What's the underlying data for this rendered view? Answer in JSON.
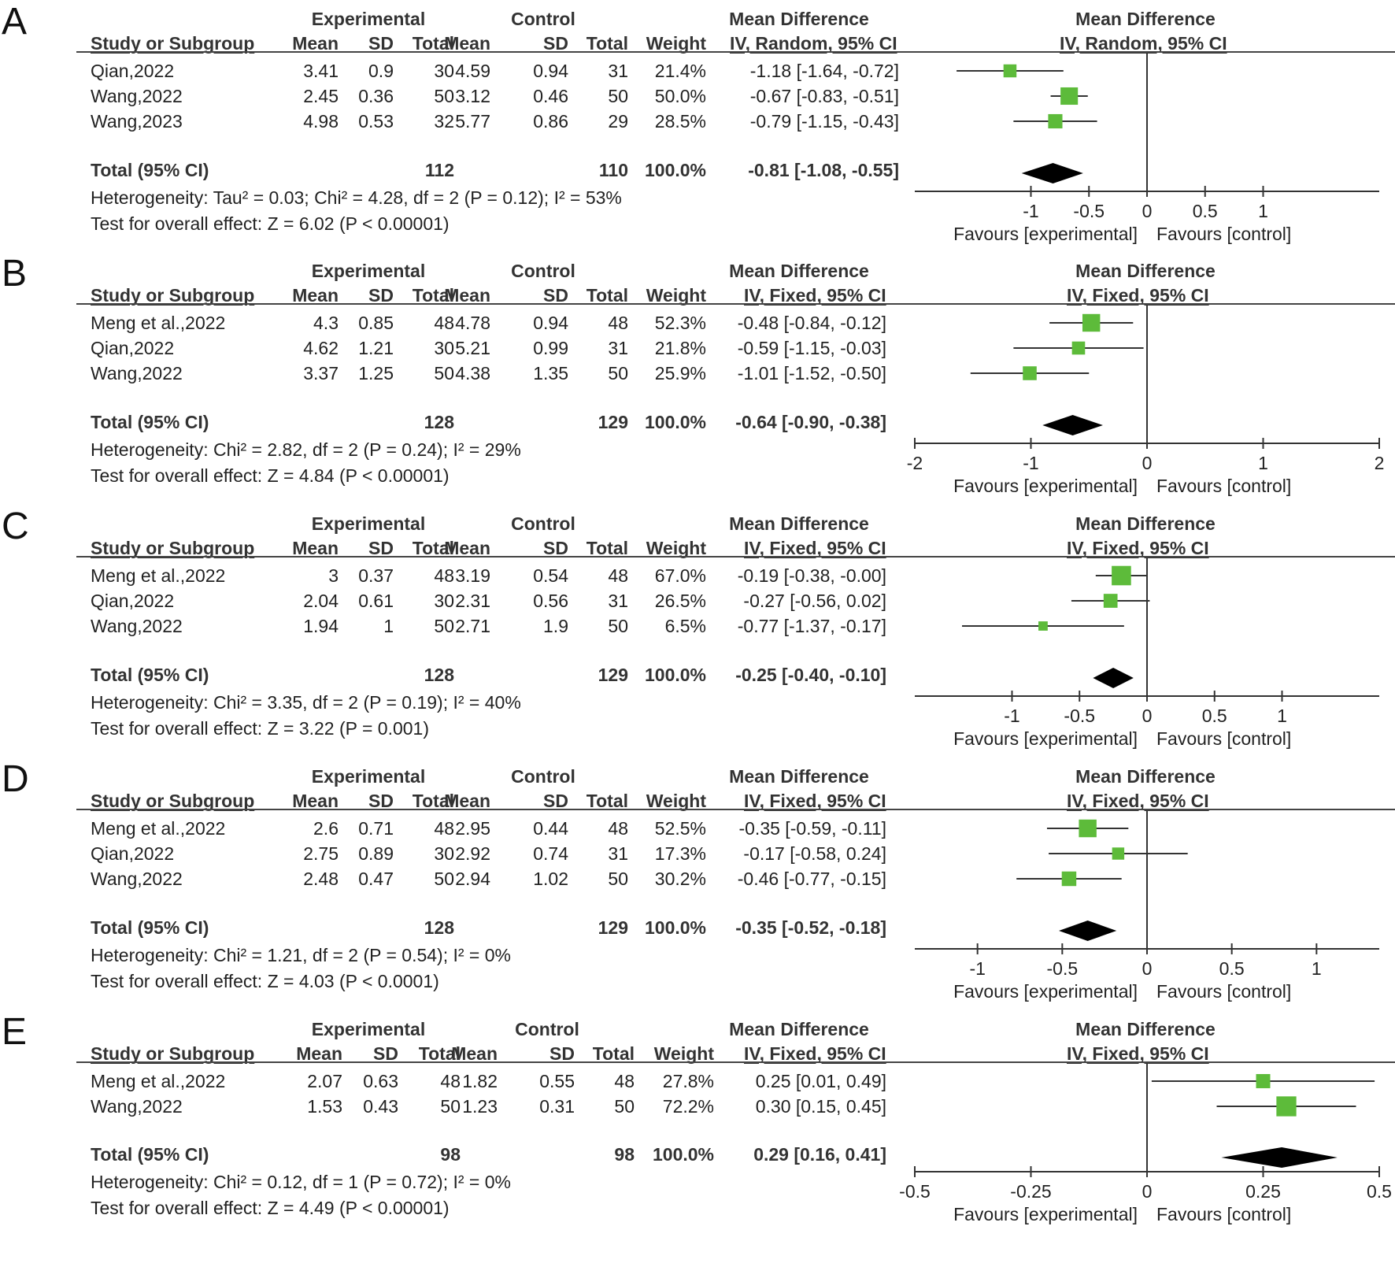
{
  "headers": {
    "experimental": "Experimental",
    "control": "Control",
    "mean_difference": "Mean Difference",
    "study_or_subgroup": "Study or Subgroup",
    "mean": "Mean",
    "sd": "SD",
    "total": "Total",
    "weight": "Weight"
  },
  "colors": {
    "study_marker": "#5dbb3a",
    "diamond": "#000000",
    "line": "#333333"
  },
  "chart_data": [
    {
      "type": "table",
      "panel_label": "A",
      "method": "IV, Random, 95% CI",
      "rows": [
        {
          "study": "Qian,2022",
          "exp_mean": "3.41",
          "exp_sd": "0.9",
          "exp_total": "30",
          "ctl_mean": "4.59",
          "ctl_sd": "0.94",
          "ctl_total": "31",
          "weight": "21.4%",
          "md_text": "-1.18 [-1.64, -0.72]",
          "md": -1.18,
          "lo": -1.64,
          "hi": -0.72,
          "w": 21.4
        },
        {
          "study": "Wang,2022",
          "exp_mean": "2.45",
          "exp_sd": "0.36",
          "exp_total": "50",
          "ctl_mean": "3.12",
          "ctl_sd": "0.46",
          "ctl_total": "50",
          "weight": "50.0%",
          "md_text": "-0.67 [-0.83, -0.51]",
          "md": -0.67,
          "lo": -0.83,
          "hi": -0.51,
          "w": 50.0
        },
        {
          "study": "Wang,2023",
          "exp_mean": "4.98",
          "exp_sd": "0.53",
          "exp_total": "32",
          "ctl_mean": "5.77",
          "ctl_sd": "0.86",
          "ctl_total": "29",
          "weight": "28.5%",
          "md_text": "-0.79 [-1.15, -0.43]",
          "md": -0.79,
          "lo": -1.15,
          "hi": -0.43,
          "w": 28.5
        }
      ],
      "total": {
        "label": "Total (95% CI)",
        "exp_total": "112",
        "ctl_total": "110",
        "weight": "100.0%",
        "md_text": "-0.81 [-1.08, -0.55]",
        "md": -0.81,
        "lo": -1.08,
        "hi": -0.55
      },
      "heterogeneity": "Heterogeneity: Tau² = 0.03; Chi² = 4.28, df = 2 (P = 0.12); I² = 53%",
      "overall_effect": "Test for overall effect: Z = 6.02 (P < 0.00001)",
      "xlim": [
        -2,
        2
      ],
      "ticks": [
        -1,
        -0.5,
        0,
        0.5,
        1
      ],
      "favours_left": "Favours [experimental]",
      "favours_right": "Favours [control]"
    },
    {
      "type": "table",
      "panel_label": "B",
      "method": "IV, Fixed, 95% CI",
      "rows": [
        {
          "study": "Meng et al.,2022",
          "exp_mean": "4.3",
          "exp_sd": "0.85",
          "exp_total": "48",
          "ctl_mean": "4.78",
          "ctl_sd": "0.94",
          "ctl_total": "48",
          "weight": "52.3%",
          "md_text": "-0.48 [-0.84, -0.12]",
          "md": -0.48,
          "lo": -0.84,
          "hi": -0.12,
          "w": 52.3
        },
        {
          "study": "Qian,2022",
          "exp_mean": "4.62",
          "exp_sd": "1.21",
          "exp_total": "30",
          "ctl_mean": "5.21",
          "ctl_sd": "0.99",
          "ctl_total": "31",
          "weight": "21.8%",
          "md_text": "-0.59 [-1.15, -0.03]",
          "md": -0.59,
          "lo": -1.15,
          "hi": -0.03,
          "w": 21.8
        },
        {
          "study": "Wang,2022",
          "exp_mean": "3.37",
          "exp_sd": "1.25",
          "exp_total": "50",
          "ctl_mean": "4.38",
          "ctl_sd": "1.35",
          "ctl_total": "50",
          "weight": "25.9%",
          "md_text": "-1.01 [-1.52, -0.50]",
          "md": -1.01,
          "lo": -1.52,
          "hi": -0.5,
          "w": 25.9
        }
      ],
      "total": {
        "label": "Total (95% CI)",
        "exp_total": "128",
        "ctl_total": "129",
        "weight": "100.0%",
        "md_text": "-0.64 [-0.90, -0.38]",
        "md": -0.64,
        "lo": -0.9,
        "hi": -0.38
      },
      "heterogeneity": "Heterogeneity: Chi² = 2.82, df = 2 (P = 0.24); I² = 29%",
      "overall_effect": "Test for overall effect: Z = 4.84 (P < 0.00001)",
      "xlim": [
        -2,
        2
      ],
      "ticks": [
        -2,
        -1,
        0,
        1,
        2
      ],
      "favours_left": "Favours [experimental]",
      "favours_right": "Favours [control]"
    },
    {
      "type": "table",
      "panel_label": "C",
      "method": "IV, Fixed, 95% CI",
      "rows": [
        {
          "study": "Meng et al.,2022",
          "exp_mean": "3",
          "exp_sd": "0.37",
          "exp_total": "48",
          "ctl_mean": "3.19",
          "ctl_sd": "0.54",
          "ctl_total": "48",
          "weight": "67.0%",
          "md_text": "-0.19 [-0.38, -0.00]",
          "md": -0.19,
          "lo": -0.38,
          "hi": -0.0,
          "w": 67.0
        },
        {
          "study": "Qian,2022",
          "exp_mean": "2.04",
          "exp_sd": "0.61",
          "exp_total": "30",
          "ctl_mean": "2.31",
          "ctl_sd": "0.56",
          "ctl_total": "31",
          "weight": "26.5%",
          "md_text": "-0.27 [-0.56, 0.02]",
          "md": -0.27,
          "lo": -0.56,
          "hi": 0.02,
          "w": 26.5
        },
        {
          "study": "Wang,2022",
          "exp_mean": "1.94",
          "exp_sd": "1",
          "exp_total": "50",
          "ctl_mean": "2.71",
          "ctl_sd": "1.9",
          "ctl_total": "50",
          "weight": "6.5%",
          "md_text": "-0.77 [-1.37, -0.17]",
          "md": -0.77,
          "lo": -1.37,
          "hi": -0.17,
          "w": 6.5
        }
      ],
      "total": {
        "label": "Total (95% CI)",
        "exp_total": "128",
        "ctl_total": "129",
        "weight": "100.0%",
        "md_text": "-0.25 [-0.40, -0.10]",
        "md": -0.25,
        "lo": -0.4,
        "hi": -0.1
      },
      "heterogeneity": "Heterogeneity: Chi² = 3.35, df = 2 (P = 0.19); I² = 40%",
      "overall_effect": "Test for overall effect: Z = 3.22 (P = 0.001)",
      "xlim": [
        -1.72,
        1.72
      ],
      "ticks": [
        -1,
        -0.5,
        0,
        0.5,
        1
      ],
      "favours_left": "Favours [experimental]",
      "favours_right": "Favours [control]"
    },
    {
      "type": "table",
      "panel_label": "D",
      "method": "IV, Fixed, 95% CI",
      "rows": [
        {
          "study": "Meng et al.,2022",
          "exp_mean": "2.6",
          "exp_sd": "0.71",
          "exp_total": "48",
          "ctl_mean": "2.95",
          "ctl_sd": "0.44",
          "ctl_total": "48",
          "weight": "52.5%",
          "md_text": "-0.35 [-0.59, -0.11]",
          "md": -0.35,
          "lo": -0.59,
          "hi": -0.11,
          "w": 52.5
        },
        {
          "study": "Qian,2022",
          "exp_mean": "2.75",
          "exp_sd": "0.89",
          "exp_total": "30",
          "ctl_mean": "2.92",
          "ctl_sd": "0.74",
          "ctl_total": "31",
          "weight": "17.3%",
          "md_text": "-0.17 [-0.58, 0.24]",
          "md": -0.17,
          "lo": -0.58,
          "hi": 0.24,
          "w": 17.3
        },
        {
          "study": "Wang,2022",
          "exp_mean": "2.48",
          "exp_sd": "0.47",
          "exp_total": "50",
          "ctl_mean": "2.94",
          "ctl_sd": "1.02",
          "ctl_total": "50",
          "weight": "30.2%",
          "md_text": "-0.46 [-0.77, -0.15]",
          "md": -0.46,
          "lo": -0.77,
          "hi": -0.15,
          "w": 30.2
        }
      ],
      "total": {
        "label": "Total (95% CI)",
        "exp_total": "128",
        "ctl_total": "129",
        "weight": "100.0%",
        "md_text": "-0.35 [-0.52, -0.18]",
        "md": -0.35,
        "lo": -0.52,
        "hi": -0.18
      },
      "heterogeneity": "Heterogeneity: Chi² = 1.21, df = 2 (P = 0.54); I² = 0%",
      "overall_effect": "Test for overall effect: Z = 4.03 (P < 0.0001)",
      "xlim": [
        -1.37,
        1.37
      ],
      "ticks": [
        -1,
        -0.5,
        0,
        0.5,
        1
      ],
      "favours_left": "Favours [experimental]",
      "favours_right": "Favours [control]"
    },
    {
      "type": "table",
      "panel_label": "E",
      "method": "IV, Fixed, 95% CI",
      "rows": [
        {
          "study": "Meng et al.,2022",
          "exp_mean": "2.07",
          "exp_sd": "0.63",
          "exp_total": "48",
          "ctl_mean": "1.82",
          "ctl_sd": "0.55",
          "ctl_total": "48",
          "weight": "27.8%",
          "md_text": "0.25 [0.01, 0.49]",
          "md": 0.25,
          "lo": 0.01,
          "hi": 0.49,
          "w": 27.8
        },
        {
          "study": "Wang,2022",
          "exp_mean": "1.53",
          "exp_sd": "0.43",
          "exp_total": "50",
          "ctl_mean": "1.23",
          "ctl_sd": "0.31",
          "ctl_total": "50",
          "weight": "72.2%",
          "md_text": "0.30 [0.15, 0.45]",
          "md": 0.3,
          "lo": 0.15,
          "hi": 0.45,
          "w": 72.2
        }
      ],
      "total": {
        "label": "Total (95% CI)",
        "exp_total": "98",
        "ctl_total": "98",
        "weight": "100.0%",
        "md_text": "0.29 [0.16, 0.41]",
        "md": 0.29,
        "lo": 0.16,
        "hi": 0.41
      },
      "heterogeneity": "Heterogeneity: Chi² = 0.12, df = 1 (P = 0.72); I² = 0%",
      "overall_effect": "Test for overall effect: Z = 4.49 (P < 0.00001)",
      "xlim": [
        -0.5,
        0.5
      ],
      "ticks": [
        -0.5,
        -0.25,
        0,
        0.25,
        0.5
      ],
      "favours_left": "Favours [experimental]",
      "favours_right": "Favours [control]"
    }
  ]
}
